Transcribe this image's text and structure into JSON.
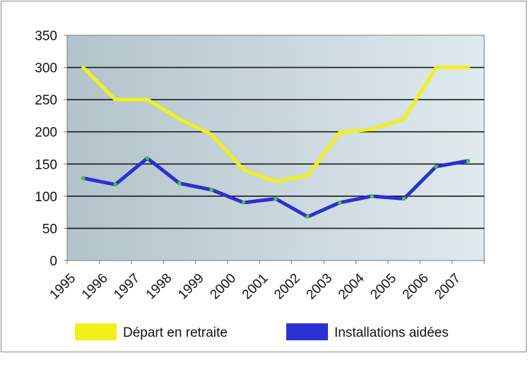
{
  "chart_data": {
    "type": "line",
    "title": "",
    "xlabel": "",
    "ylabel": "",
    "categories": [
      "1995",
      "1996",
      "1997",
      "1998",
      "1999",
      "2000",
      "2001",
      "2002",
      "2003",
      "2004",
      "2005",
      "2006",
      "2007"
    ],
    "ylim": [
      0,
      350
    ],
    "yticks": [
      0,
      50,
      100,
      150,
      200,
      250,
      300,
      350
    ],
    "grid": true,
    "legend_placement": "bottom",
    "series": [
      {
        "name": "Départ en retraite",
        "color": "#f2ef1c",
        "values": [
          300,
          250,
          250,
          220,
          196,
          141,
          123,
          132,
          199,
          204,
          220,
          300,
          300
        ]
      },
      {
        "name": "Installations aidées",
        "color": "#2b2fd6",
        "marker_color": "#4cc13a",
        "values": [
          128,
          118,
          159,
          120,
          110,
          90,
          96,
          68,
          90,
          100,
          96,
          146,
          155
        ]
      }
    ],
    "background_gradient": [
      "#b3c3cb",
      "#dfeaee"
    ]
  }
}
